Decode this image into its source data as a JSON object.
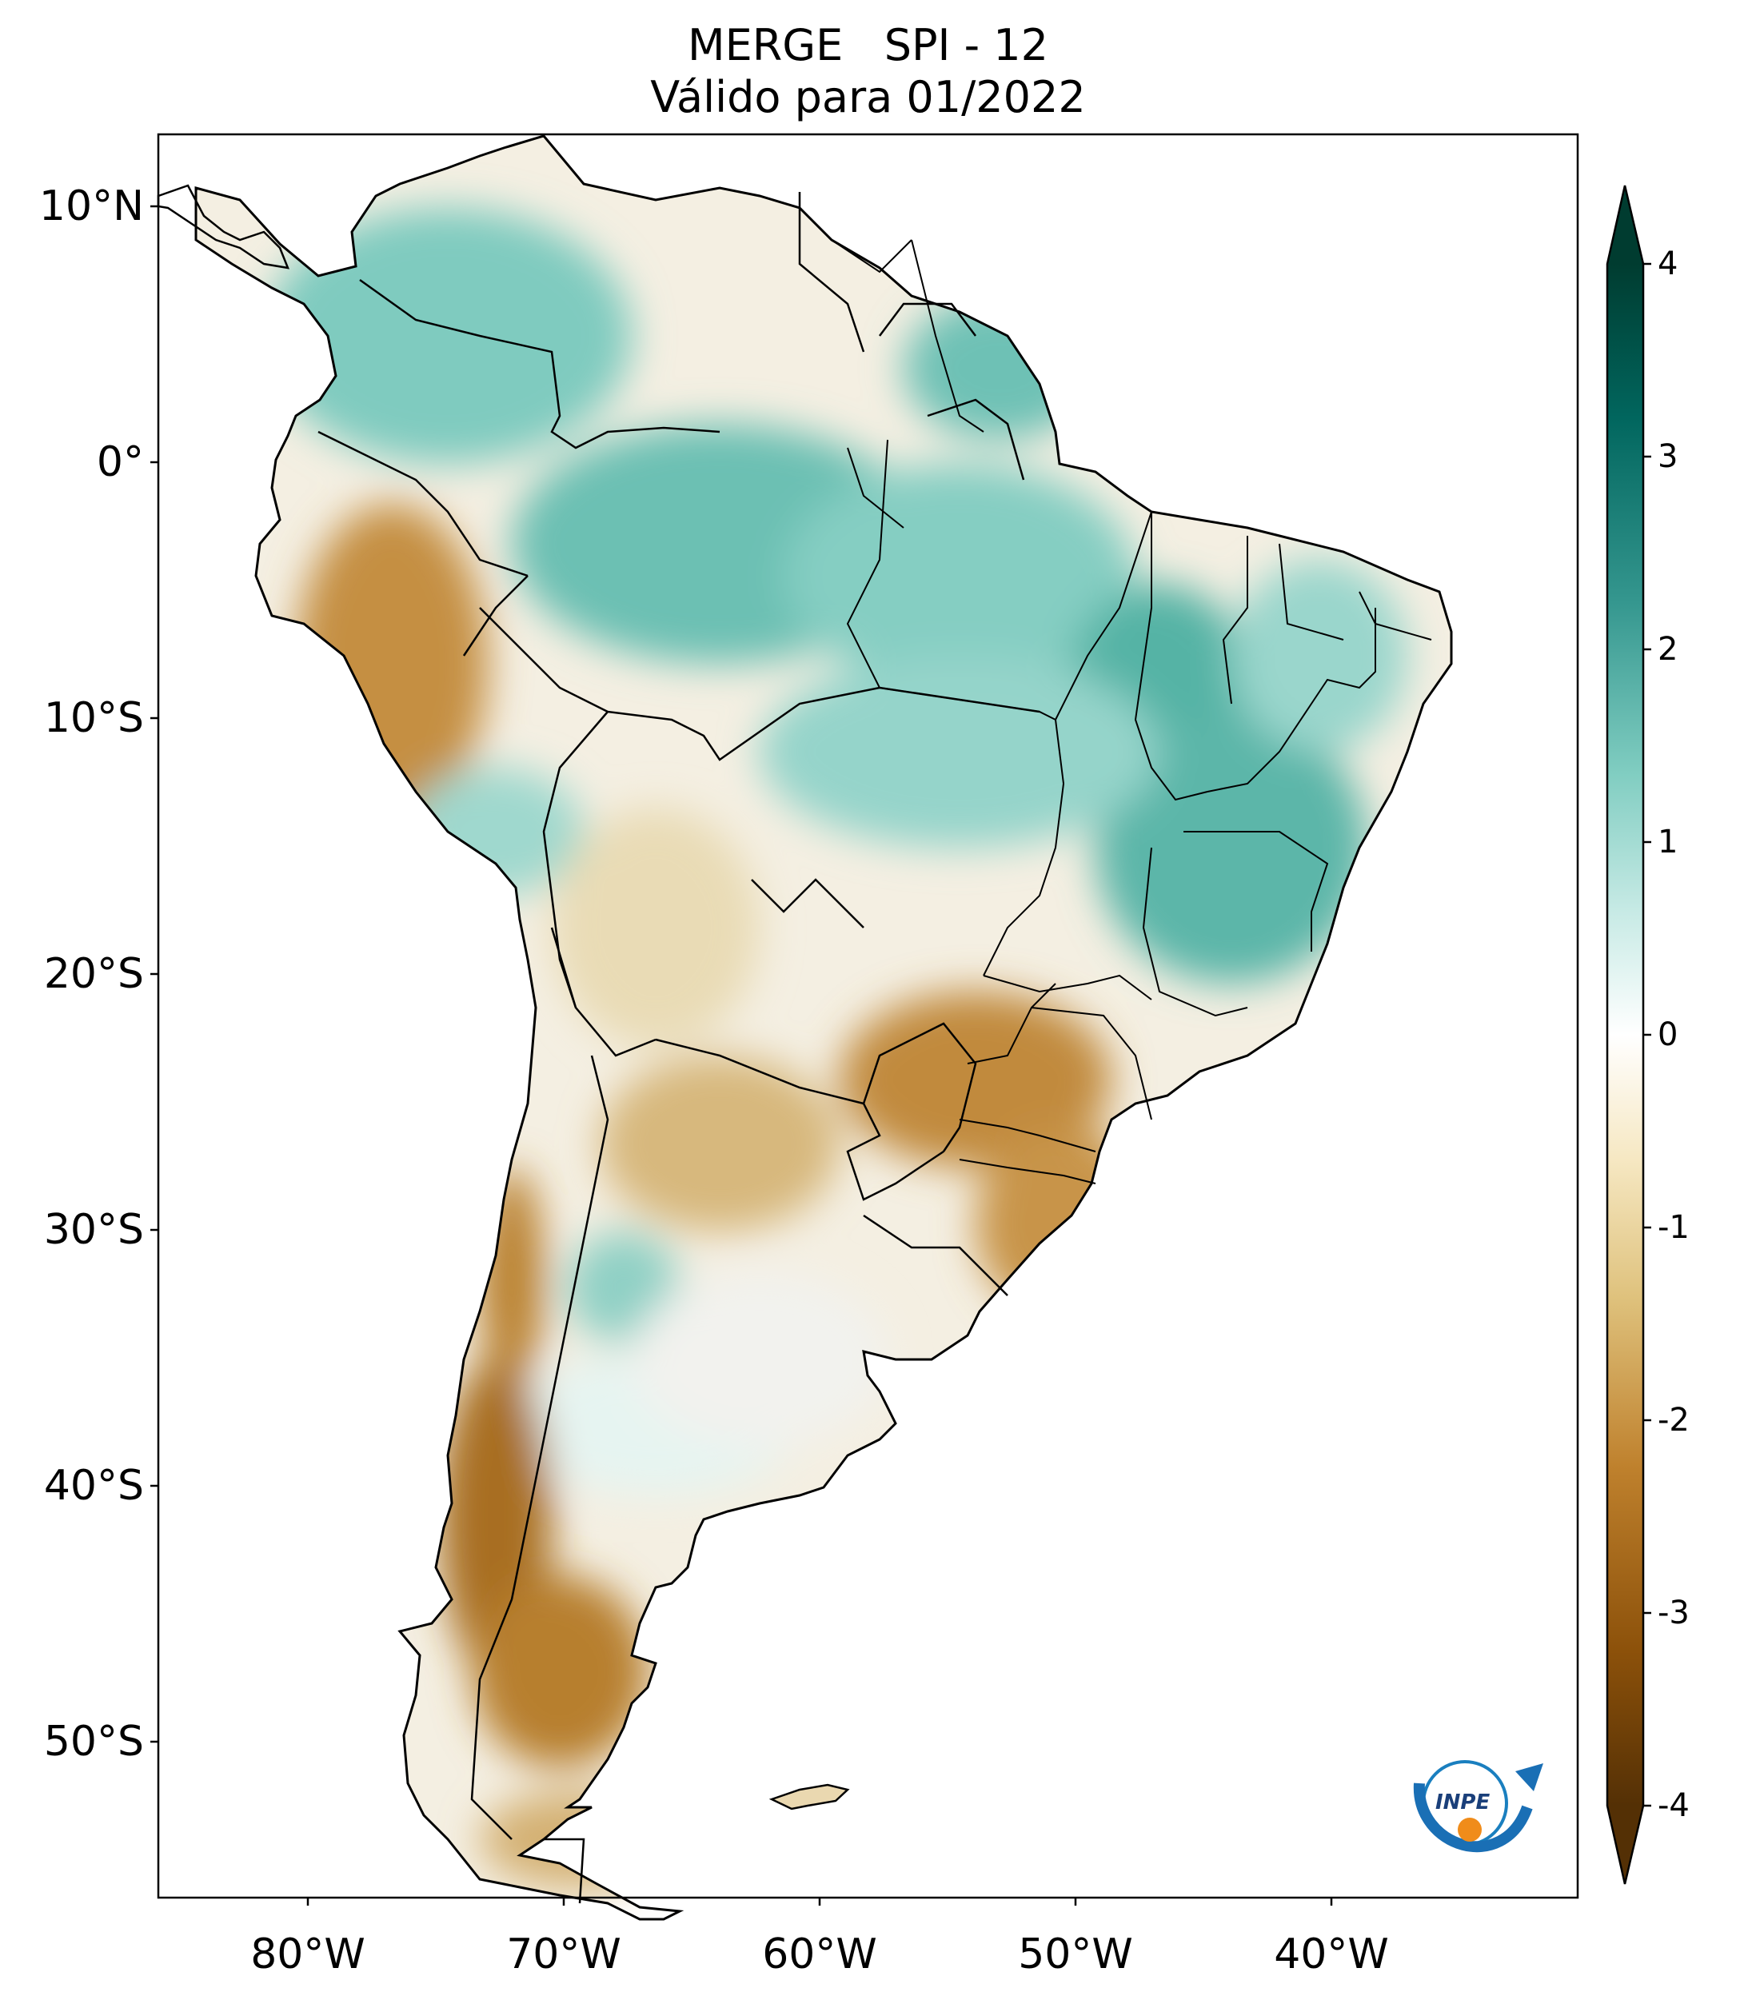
{
  "title": {
    "line1": "MERGE   SPI - 12",
    "line2": "Válido para 01/2022"
  },
  "axes": {
    "lat_labels": [
      "10°N",
      "0°",
      "10°S",
      "20°S",
      "30°S",
      "40°S",
      "50°S"
    ],
    "lon_labels": [
      "80°W",
      "70°W",
      "60°W",
      "50°W",
      "40°W"
    ]
  },
  "colorbar": {
    "ticks": [
      "4",
      "3",
      "2",
      "1",
      "0",
      "-1",
      "-2",
      "-3",
      "-4"
    ],
    "colors": [
      "#543005",
      "#8c510a",
      "#bf812d",
      "#dfc27d",
      "#f6e8c3",
      "#ffffff",
      "#c7eae5",
      "#80cdc1",
      "#35978f",
      "#01665e",
      "#003c30"
    ],
    "extend": "both"
  },
  "map": {
    "land_outline": "#000000",
    "ocean": "#ffffff",
    "variable": "SPI-12",
    "regions": {
      "amazon": "wet",
      "northeast_brazil": "wet",
      "peru_andes": "dry",
      "paraguay_southern_brazil": "dry",
      "chile_patagonia": "dry",
      "central_argentina": "mixed"
    }
  },
  "logo": {
    "text": "INPE"
  }
}
